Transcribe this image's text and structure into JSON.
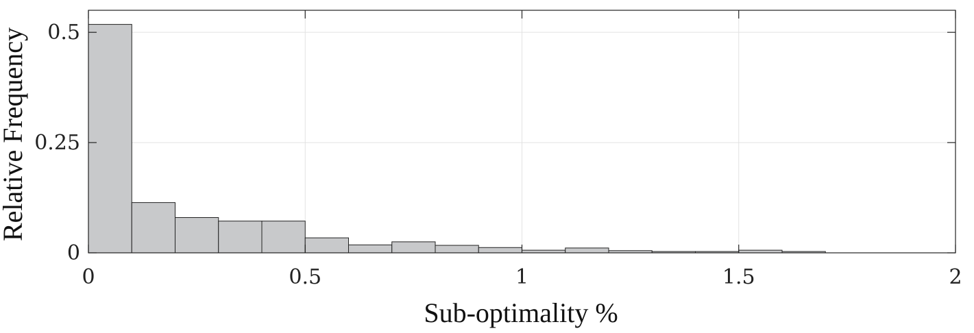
{
  "chart_data": {
    "type": "bar",
    "subtype": "histogram",
    "xlabel": "Sub-optimality %",
    "ylabel": "Relative Frequency",
    "xlim": [
      0,
      2
    ],
    "ylim": [
      0,
      0.55
    ],
    "xticks": [
      0,
      0.5,
      1,
      1.5,
      2
    ],
    "xtick_labels": [
      "0",
      "0.5",
      "1",
      "1.5",
      "2"
    ],
    "yticks": [
      0,
      0.25,
      0.5
    ],
    "ytick_labels": [
      "0",
      "0.25",
      "0.5"
    ],
    "grid": true,
    "bin_width": 0.1,
    "bin_edges": [
      0,
      0.1,
      0.2,
      0.3,
      0.4,
      0.5,
      0.6,
      0.7,
      0.8,
      0.9,
      1.0,
      1.1,
      1.2,
      1.3,
      1.4,
      1.5,
      1.6,
      1.7
    ],
    "values": [
      0.518,
      0.114,
      0.08,
      0.072,
      0.072,
      0.034,
      0.018,
      0.025,
      0.017,
      0.012,
      0.006,
      0.011,
      0.005,
      0.003,
      0.003,
      0.006,
      0.003
    ],
    "bar_color": "#c8c9cb",
    "edge_color": "#222222"
  }
}
